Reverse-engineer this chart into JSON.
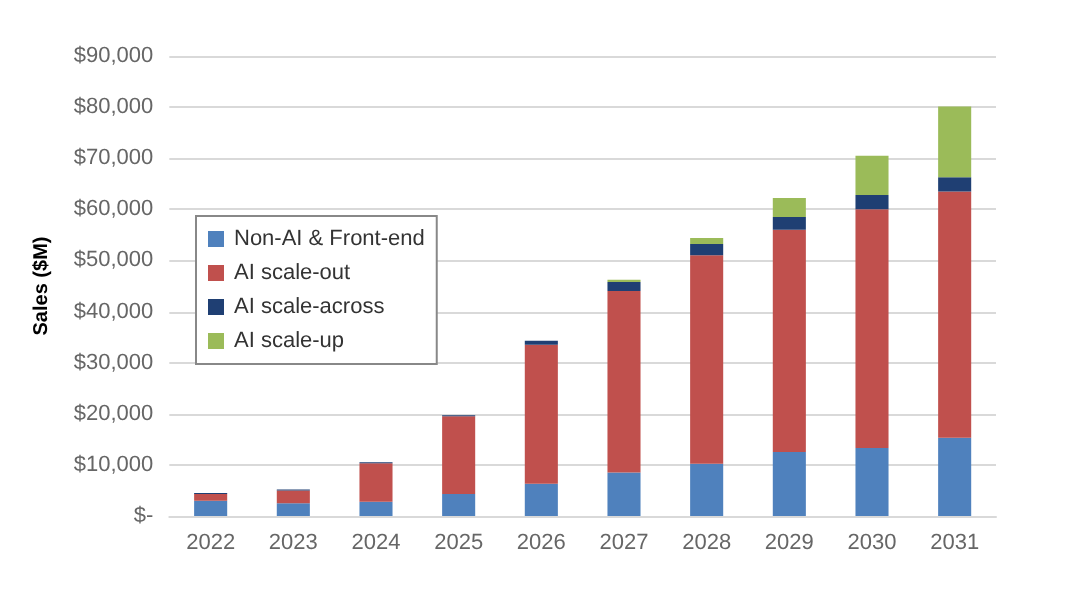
{
  "chart_data": {
    "type": "bar",
    "stacked": true,
    "ylabel": "Sales ($M)",
    "categories": [
      "2022",
      "2023",
      "2024",
      "2025",
      "2026",
      "2027",
      "2028",
      "2029",
      "2030",
      "2031"
    ],
    "series": [
      {
        "name": "Non-AI & Front-end",
        "color": "#4f81bd",
        "values": [
          3000,
          2500,
          2800,
          4300,
          6300,
          8500,
          10200,
          12500,
          13300,
          15300
        ]
      },
      {
        "name": "AI scale-out",
        "color": "#c0504d",
        "values": [
          1300,
          2500,
          7500,
          15200,
          27200,
          35500,
          40800,
          43500,
          46700,
          48200
        ]
      },
      {
        "name": "AI scale-across",
        "color": "#1f3f73",
        "values": [
          200,
          200,
          200,
          200,
          800,
          1800,
          2200,
          2500,
          2800,
          2800
        ]
      },
      {
        "name": "AI scale-up",
        "color": "#9bbb59",
        "values": [
          0,
          0,
          0,
          0,
          0,
          400,
          1200,
          3700,
          7700,
          13800
        ]
      }
    ],
    "ylim": [
      0,
      90000
    ],
    "yticks": [
      {
        "value": 0,
        "label": "$-"
      },
      {
        "value": 10000,
        "label": "$10,000"
      },
      {
        "value": 20000,
        "label": "$20,000"
      },
      {
        "value": 30000,
        "label": "$30,000"
      },
      {
        "value": 40000,
        "label": "$40,000"
      },
      {
        "value": 50000,
        "label": "$50,000"
      },
      {
        "value": 60000,
        "label": "$60,000"
      },
      {
        "value": 70000,
        "label": "$70,000"
      },
      {
        "value": 80000,
        "label": "$80,000"
      },
      {
        "value": 90000,
        "label": "$90,000"
      }
    ],
    "grid": "y",
    "legend": "left"
  }
}
